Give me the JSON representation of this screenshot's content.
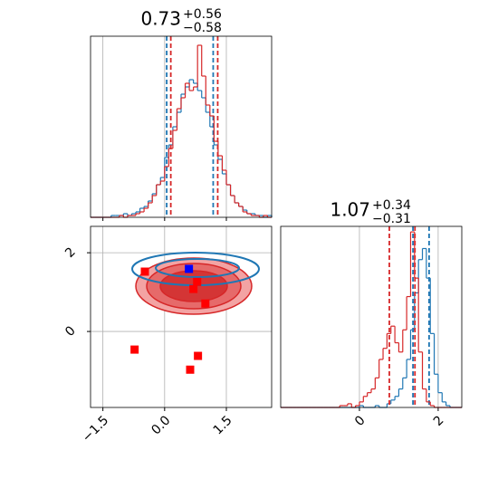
{
  "chart_data": [
    {
      "type": "histogram",
      "title_value": "0.73",
      "title_upper": "+0.56",
      "title_lower": "−0.58",
      "xlim": [
        -1.8,
        2.6
      ],
      "ylim": [
        0,
        100
      ],
      "xticks": [
        -1.5,
        0,
        1.5
      ],
      "show_xtick_labels": false,
      "grid": true,
      "bins": [
        -1.8,
        -1.7,
        -1.6,
        -1.5,
        -1.4,
        -1.3,
        -1.2,
        -1.1,
        -1.0,
        -0.9,
        -0.8,
        -0.7,
        -0.6,
        -0.5,
        -0.4,
        -0.3,
        -0.2,
        -0.1,
        0.0,
        0.1,
        0.2,
        0.3,
        0.4,
        0.5,
        0.6,
        0.7,
        0.8,
        0.9,
        1.0,
        1.1,
        1.2,
        1.3,
        1.4,
        1.5,
        1.6,
        1.7,
        1.8,
        1.9,
        2.0,
        2.1,
        2.2,
        2.3,
        2.4,
        2.5,
        2.6
      ],
      "series": [
        {
          "color": "#1f77b4",
          "values": [
            0,
            0,
            0,
            0,
            0,
            1,
            1,
            1,
            2,
            1,
            2,
            3,
            5,
            6,
            9,
            13,
            18,
            22,
            33,
            40,
            50,
            58,
            68,
            72,
            76,
            74,
            70,
            66,
            58,
            50,
            40,
            32,
            24,
            18,
            12,
            8,
            6,
            4,
            2,
            2,
            1,
            1,
            0,
            1
          ],
          "quantiles": [
            0.05,
            1.18
          ]
        },
        {
          "color": "#d62728",
          "values": [
            0,
            0,
            0,
            0,
            0,
            0,
            0,
            1,
            0,
            1,
            1,
            2,
            3,
            5,
            8,
            12,
            18,
            20,
            28,
            38,
            48,
            60,
            66,
            74,
            70,
            72,
            95,
            78,
            62,
            56,
            42,
            34,
            26,
            18,
            12,
            8,
            6,
            3,
            2,
            1,
            1,
            0,
            1,
            0
          ],
          "quantiles": [
            0.15,
            1.29
          ]
        }
      ]
    },
    {
      "type": "scatter",
      "xlim": [
        -1.8,
        2.6
      ],
      "ylim": [
        -1.93,
        2.67
      ],
      "xticks": [
        {
          "value": -1.5,
          "label": "−1.5"
        },
        {
          "value": 0,
          "label": "0.0"
        },
        {
          "value": 1.5,
          "label": "1.5"
        }
      ],
      "yticks": [
        0,
        2
      ],
      "show_xtick_labels": true,
      "grid": true,
      "series": [
        {
          "color": "#ff0000",
          "x": [
            -0.48,
            0.79,
            0.7,
            0.99,
            -0.73,
            0.81,
            0.62
          ],
          "values": [
            1.52,
            1.26,
            1.08,
            0.71,
            -0.46,
            -0.62,
            -0.97
          ]
        },
        {
          "color": "#0000ff",
          "x": [
            0.59
          ],
          "values": [
            1.59
          ]
        }
      ]
    },
    {
      "type": "histogram",
      "title_value": "1.07",
      "title_upper": "+0.34",
      "title_lower": "−0.31",
      "xlim": [
        -2.0,
        2.6
      ],
      "ylim": [
        0,
        98
      ],
      "xticks": [
        0,
        2
      ],
      "show_xtick_labels": true,
      "grid": true,
      "bins": [
        -2.0,
        -1.9,
        -1.8,
        -1.7,
        -1.6,
        -1.5,
        -1.4,
        -1.3,
        -1.2,
        -1.1,
        -1.0,
        -0.9,
        -0.8,
        -0.7,
        -0.6,
        -0.5,
        -0.4,
        -0.3,
        -0.2,
        -0.1,
        0.0,
        0.1,
        0.2,
        0.3,
        0.4,
        0.5,
        0.6,
        0.7,
        0.8,
        0.9,
        1.0,
        1.1,
        1.2,
        1.3,
        1.4,
        1.5,
        1.6,
        1.7,
        1.8,
        1.9,
        2.0,
        2.1,
        2.2,
        2.3,
        2.4,
        2.5,
        2.6
      ],
      "series": [
        {
          "color": "#1f77b4",
          "values": [
            0,
            0,
            0,
            0,
            0,
            0,
            0,
            0,
            0,
            0,
            0,
            0,
            0,
            0,
            0,
            0,
            0,
            0,
            0,
            0,
            1,
            0,
            0,
            0,
            1,
            0,
            0,
            2,
            4,
            6,
            10,
            16,
            26,
            42,
            62,
            80,
            86,
            70,
            40,
            18,
            8,
            3,
            1,
            0,
            0,
            0
          ],
          "quantiles": [
            1.36,
            1.77
          ]
        },
        {
          "color": "#d62728",
          "values": [
            0,
            0,
            0,
            0,
            0,
            0,
            0,
            0,
            0,
            0,
            0,
            0,
            0,
            0,
            0,
            1,
            1,
            2,
            0,
            1,
            3,
            6,
            8,
            10,
            16,
            26,
            32,
            40,
            44,
            35,
            30,
            42,
            60,
            95,
            70,
            30,
            10,
            3,
            1,
            0,
            0,
            0,
            0,
            0,
            0,
            0
          ],
          "quantiles": [
            0.76,
            1.41
          ]
        }
      ]
    }
  ]
}
